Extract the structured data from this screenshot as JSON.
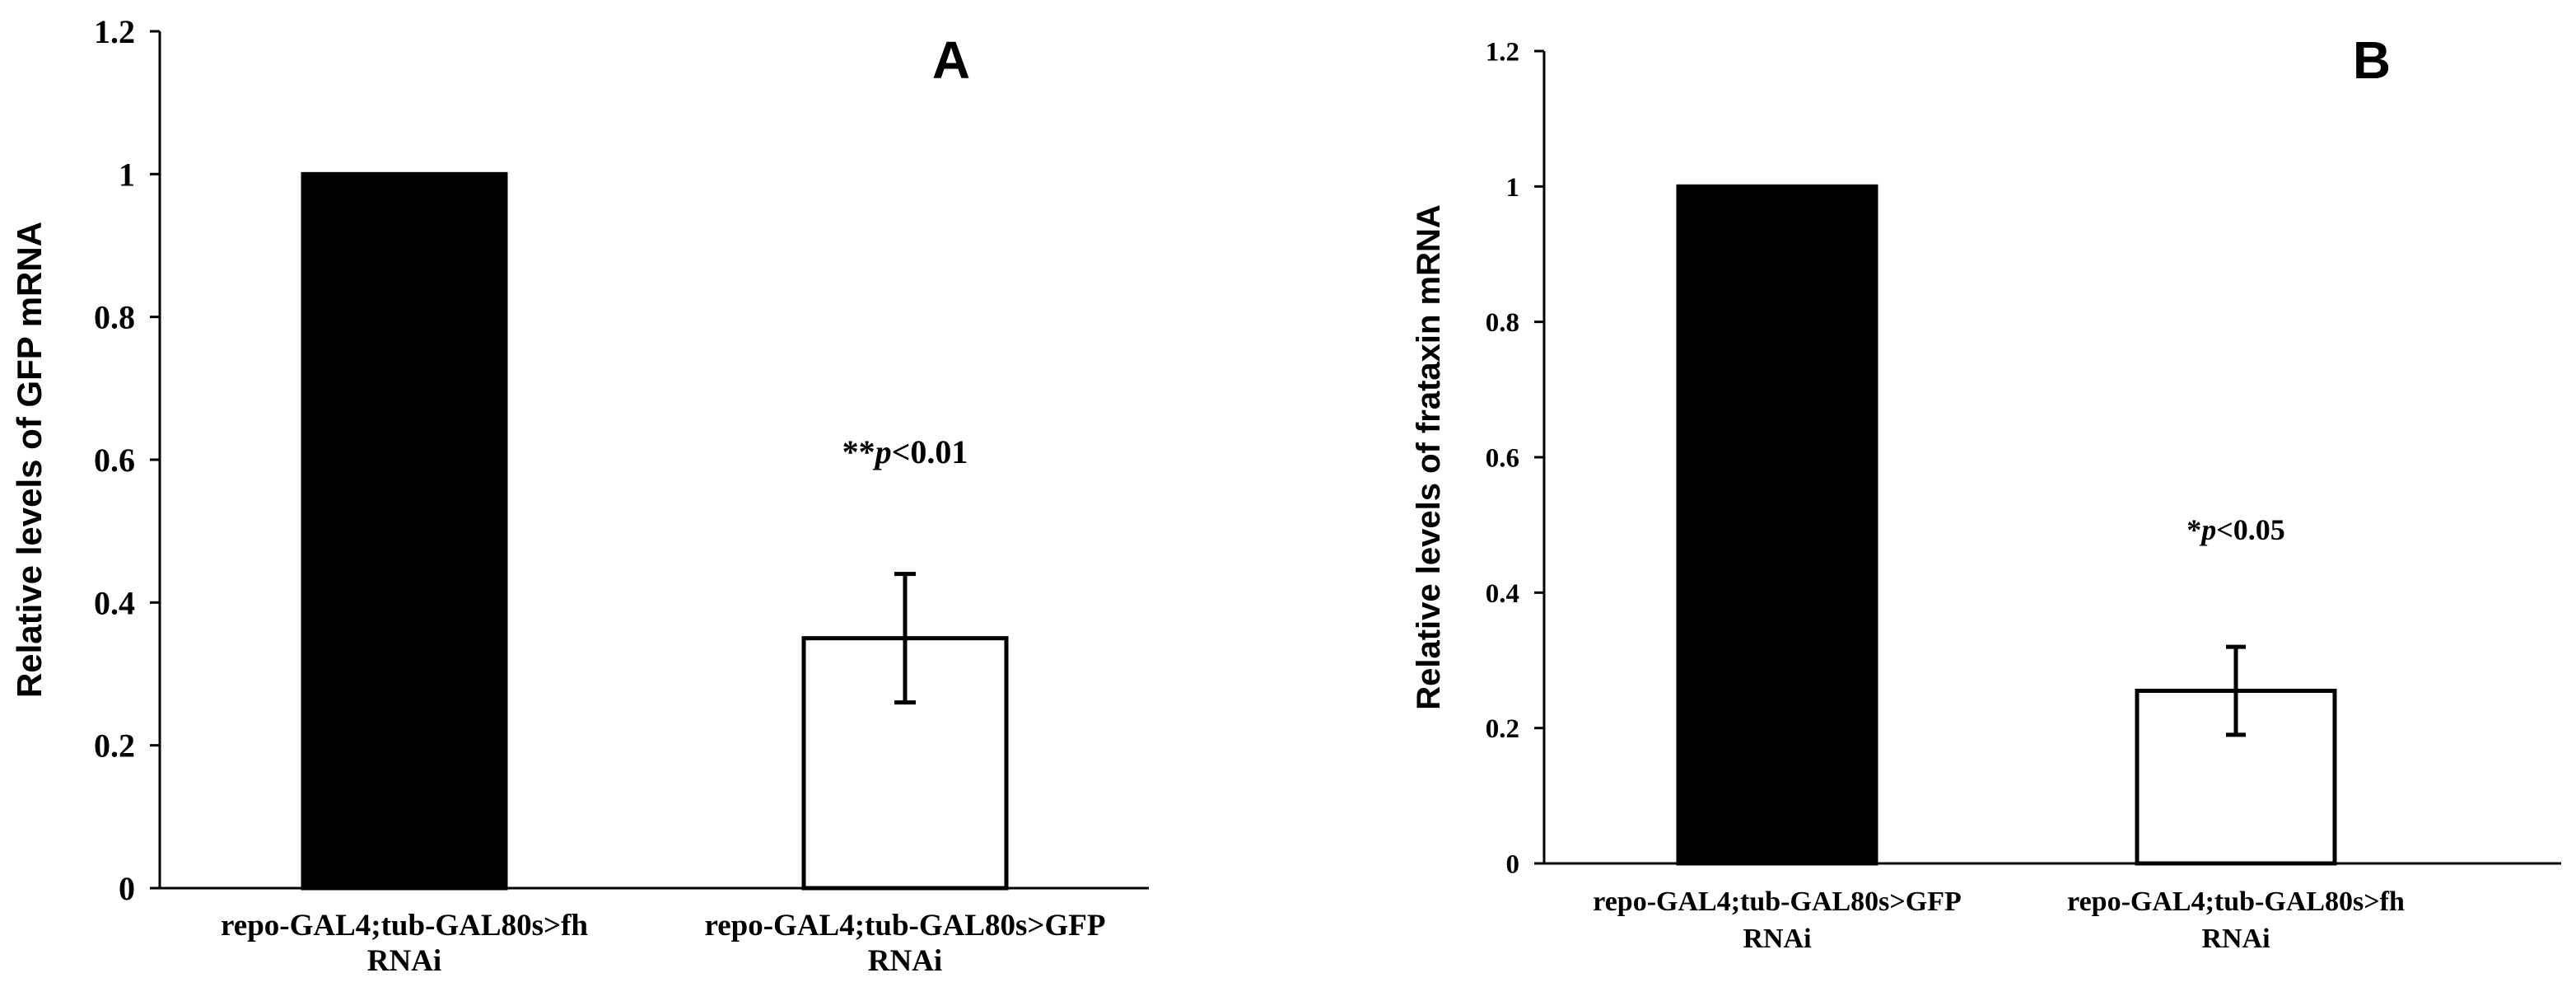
{
  "chart_data": [
    {
      "type": "bar",
      "panel_label": "A",
      "ylabel": "Relative levels of GFP mRNA",
      "ylim": [
        0,
        1.2
      ],
      "yticks": [
        "0",
        "0.2",
        "0.4",
        "0.6",
        "0.8",
        "1",
        "1.2"
      ],
      "categories": [
        [
          "repo-GAL4;tub-GAL80s>fh",
          "RNAi"
        ],
        [
          "repo-GAL4;tub-GAL80s>GFP",
          "RNAi"
        ]
      ],
      "values": [
        1.0,
        0.35
      ],
      "error": [
        0,
        0.09
      ],
      "bar_colors": [
        "#000000",
        "#ffffff"
      ],
      "annotation": {
        "stars": "**",
        "p": "p",
        "rest": "<0.01",
        "attached_to_bar": 1
      }
    },
    {
      "type": "bar",
      "panel_label": "B",
      "ylabel": "Relative levels of frataxin mRNA",
      "ylim": [
        0,
        1.2
      ],
      "yticks": [
        "0",
        "0.2",
        "0.4",
        "0.6",
        "0.8",
        "1",
        "1.2"
      ],
      "categories": [
        [
          "repo-GAL4;tub-GAL80s>GFP",
          "RNAi"
        ],
        [
          "repo-GAL4;tub-GAL80s>fh",
          "RNAi"
        ]
      ],
      "values": [
        1.0,
        0.255
      ],
      "error": [
        0,
        0.065
      ],
      "bar_colors": [
        "#000000",
        "#ffffff"
      ],
      "annotation": {
        "stars": "*",
        "p": "p",
        "rest": "<0.05",
        "attached_to_bar": 1
      }
    }
  ]
}
